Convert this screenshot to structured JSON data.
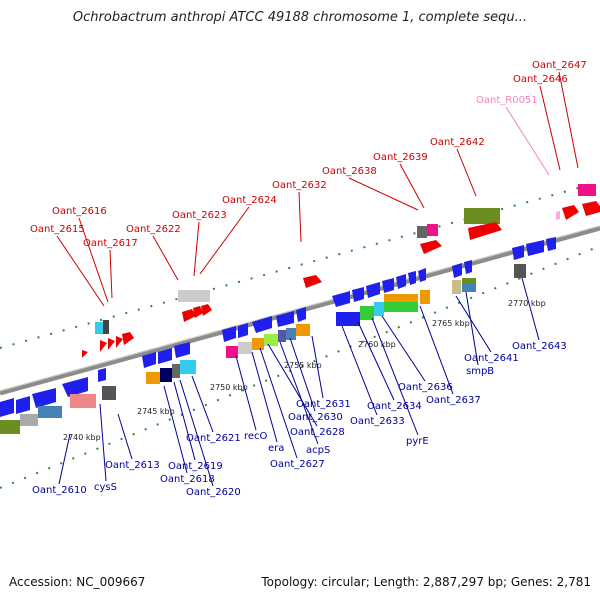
{
  "header": {
    "title": "Ochrobactrum anthropi ATCC 49188 chromosome 1, complete sequ..."
  },
  "footer": {
    "accession": "Accession: NC_009667",
    "summary": "Topology: circular; Length: 2,887,297 bp; Genes: 2,781"
  },
  "colors": {
    "top_strand_label": "#cc0000",
    "bottom_strand_label": "#000099",
    "rna_label": "#ee88bb",
    "backbone": "#8c8c8c",
    "tick_dot": "#2e8b2e"
  },
  "ticks": [
    "2740 kbp",
    "2745 kbp",
    "2750 kbp",
    "2755 kbp",
    "2760 kbp",
    "2765 kbp",
    "2770 kbp"
  ],
  "top_genes": [
    "Oant_2615",
    "Oant_2616",
    "Oant_2617",
    "Oant_2622",
    "Oant_2623",
    "Oant_2624",
    "Oant_2632",
    "Oant_2638",
    "Oant_2639",
    "Oant_2642",
    "Oant_R0051",
    "Oant_2646",
    "Oant_2647"
  ],
  "bottom_genes": [
    "Oant_2610",
    "cysS",
    "Oant_2613",
    "Oant_2618",
    "Oant_2619",
    "Oant_2620",
    "Oant_2621",
    "recO",
    "era",
    "Oant_2627",
    "Oant_2628",
    "acpS",
    "Oant_2630",
    "Oant_2631",
    "Oant_2633",
    "Oant_2634",
    "pyrE",
    "Oant_2636",
    "Oant_2637",
    "Oant_2641",
    "smpB",
    "Oant_2643"
  ]
}
